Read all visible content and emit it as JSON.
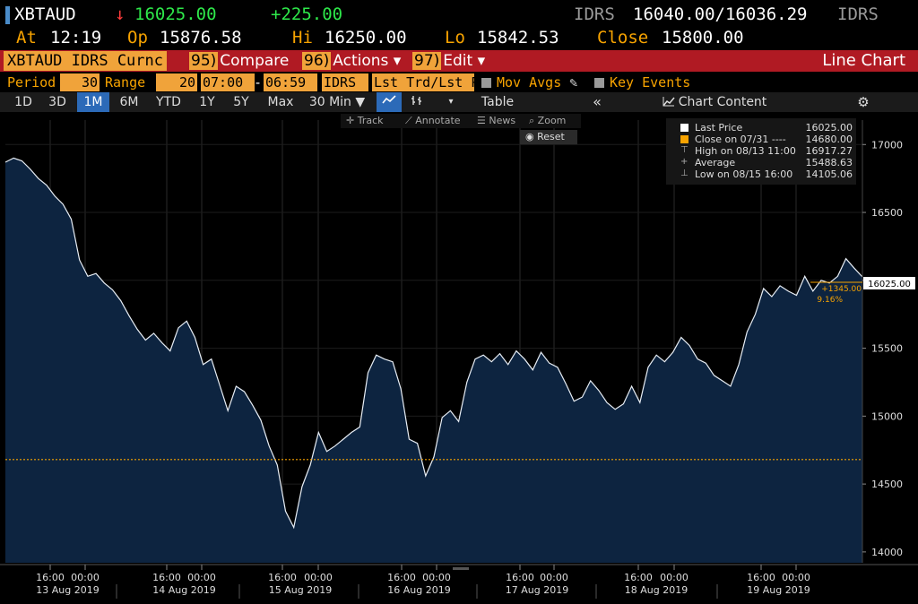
{
  "header": {
    "ticker": "XBTAUD",
    "arrow": "↓",
    "last": "16025.00",
    "change": "+225.00",
    "currency_left": "IDRS",
    "bid_ask": "16040.00/16036.29",
    "currency_right": "IDRS",
    "at_label": "At",
    "at_time": "12:19",
    "op_label": "Op",
    "op_value": "15876.58",
    "hi_label": "Hi",
    "hi_value": "16250.00",
    "lo_label": "Lo",
    "lo_value": "15842.53",
    "close_label": "Close",
    "close_value": "15800.00"
  },
  "menubar": {
    "security": "XBTAUD IDRS Curnc",
    "compare_num": "95)",
    "compare_label": "Compare",
    "actions_num": "96)",
    "actions_label": "Actions ▾",
    "edit_num": "97)",
    "edit_label": "Edit ▾",
    "title": "Line Chart"
  },
  "settings": {
    "period_label": "Period",
    "period_value": "30",
    "range_label": "Range",
    "range_value": "20",
    "time_from": "07:00",
    "dash": "-",
    "time_to": "06:59",
    "source": "IDRS",
    "field": "Lst Trd/Lst P",
    "mov_avgs": "Mov Avgs",
    "key_events": "Key Events"
  },
  "tabs": {
    "items": [
      "1D",
      "3D",
      "1M",
      "6M",
      "YTD",
      "1Y",
      "5Y",
      "Max"
    ],
    "active": "1M",
    "interval": "30 Min ▼",
    "table": "Table",
    "chart_content": "Chart Content"
  },
  "tools": {
    "track": "Track",
    "annotate": "Annotate",
    "news": "News",
    "zoom": "Zoom",
    "reset": "Reset"
  },
  "legend": {
    "rows": [
      {
        "label": "Last Price",
        "value": "16025.00"
      },
      {
        "label": "Close on 07/31  ----",
        "value": "14680.00"
      },
      {
        "label": "High on 08/13 11:00",
        "value": "16917.27"
      },
      {
        "label": "Average",
        "value": "15488.63"
      },
      {
        "label": "Low on 08/15 16:00",
        "value": "14105.06"
      }
    ]
  },
  "colors": {
    "accent": "#f7a300",
    "up": "#2ee84a",
    "down": "#ff3b3b",
    "area": "#0d2440",
    "line": "#e8eef5",
    "menubar": "#b01a23"
  },
  "chart_data": {
    "type": "area",
    "title": "",
    "xlabel": "",
    "ylabel": "",
    "ylim": [
      13920,
      17180
    ],
    "yticks": [
      14000,
      14500,
      15000,
      15500,
      16000,
      16500,
      17000
    ],
    "reference_line": {
      "value": 14680,
      "label": "Close on 07/31"
    },
    "last_price_label": "16025.00",
    "change_label": "+1345.00",
    "change_pct_label": "9.16%",
    "x_tick_top": [
      "16:00",
      "00:00",
      "16:00",
      "00:00",
      "16:00",
      "00:00",
      "16:00",
      "00:00",
      "16:00",
      "00:00",
      "16:00",
      "00:00",
      "16:00",
      "00:00"
    ],
    "x_day_labels": [
      "13 Aug 2019",
      "14 Aug 2019",
      "15 Aug 2019",
      "16 Aug 2019",
      "17 Aug 2019",
      "18 Aug 2019",
      "19 Aug 2019"
    ],
    "series": [
      {
        "values": [
          16870,
          16900,
          16880,
          16820,
          16750,
          16700,
          16620,
          16560,
          16450,
          16150,
          16030,
          16050,
          15980,
          15930,
          15850,
          15740,
          15640,
          15560,
          15610,
          15540,
          15480,
          15650,
          15700,
          15580,
          15380,
          15420,
          15230,
          15040,
          15220,
          15180,
          15080,
          14970,
          14780,
          14640,
          14300,
          14180,
          14480,
          14640,
          14880,
          14740,
          14780,
          14830,
          14880,
          14920,
          15320,
          15450,
          15420,
          15400,
          15200,
          14830,
          14800,
          14560,
          14700,
          14990,
          15040,
          14960,
          15250,
          15420,
          15450,
          15400,
          15460,
          15380,
          15480,
          15420,
          15340,
          15470,
          15390,
          15360,
          15240,
          15110,
          15140,
          15260,
          15190,
          15100,
          15050,
          15090,
          15220,
          15100,
          15360,
          15450,
          15400,
          15470,
          15580,
          15520,
          15420,
          15390,
          15300,
          15260,
          15220,
          15380,
          15620,
          15750,
          15940,
          15880,
          15960,
          15920,
          15890,
          16030,
          15920,
          16000,
          15980,
          16030,
          16160,
          16090,
          16025
        ]
      }
    ]
  }
}
